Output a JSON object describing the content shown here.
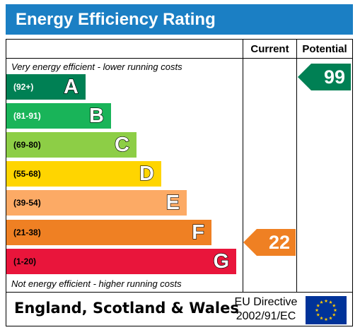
{
  "header": {
    "title": "Energy Efficiency Rating"
  },
  "columns": {
    "current": "Current",
    "potential": "Potential"
  },
  "notes": {
    "top": "Very energy efficient - lower running costs",
    "bottom": "Not energy efficient - higher running costs"
  },
  "bands": [
    {
      "range": "(92+)",
      "letter": "A",
      "color": "#008054",
      "range_color": "#ffffff"
    },
    {
      "range": "(81-91)",
      "letter": "B",
      "color": "#19b459",
      "range_color": "#ffffff"
    },
    {
      "range": "(69-80)",
      "letter": "C",
      "color": "#8dce46",
      "range_color": "#000000"
    },
    {
      "range": "(55-68)",
      "letter": "D",
      "color": "#ffd500",
      "range_color": "#000000"
    },
    {
      "range": "(39-54)",
      "letter": "E",
      "color": "#fcaa65",
      "range_color": "#000000"
    },
    {
      "range": "(21-38)",
      "letter": "F",
      "color": "#ef8023",
      "range_color": "#000000"
    },
    {
      "range": "(1-20)",
      "letter": "G",
      "color": "#e9153b",
      "range_color": "#000000"
    }
  ],
  "current_rating": {
    "value": "22",
    "band": "F",
    "color": "#ef8023"
  },
  "potential_rating": {
    "value": "99",
    "band": "A",
    "color": "#008054"
  },
  "footer": {
    "region": "England, Scotland & Wales",
    "directive_line1": "EU Directive",
    "directive_line2": "2002/91/EC",
    "flag_icon": "eu-flag-icon"
  }
}
